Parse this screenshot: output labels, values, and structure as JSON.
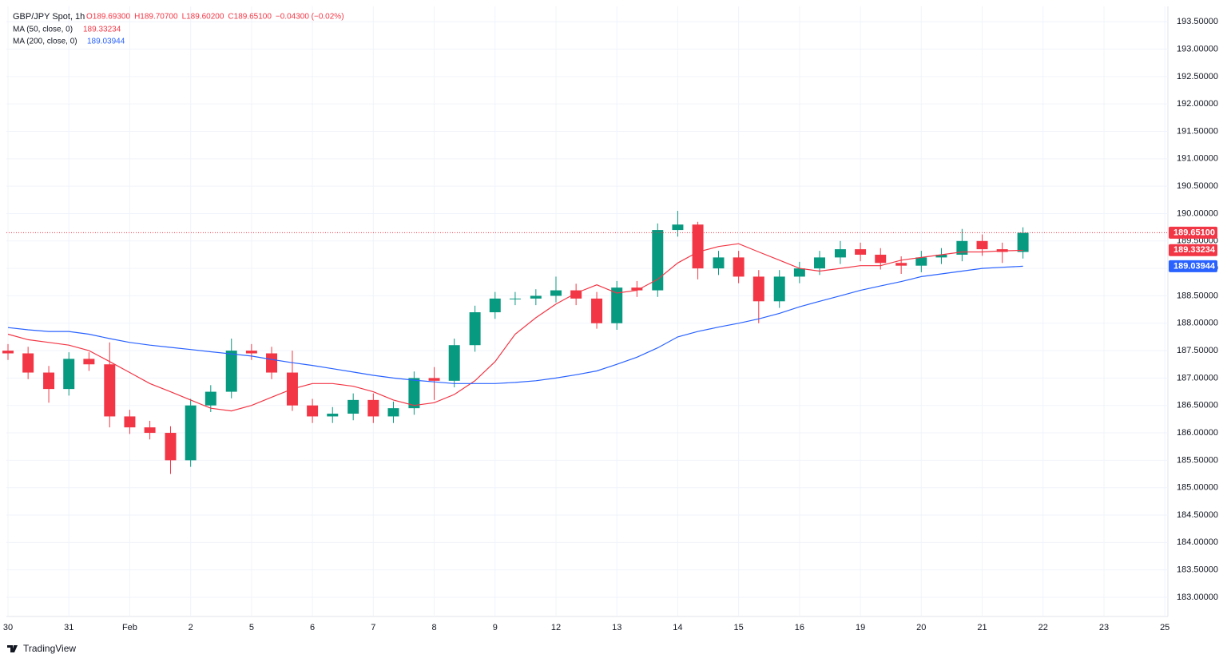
{
  "chart_data": {
    "type": "candlestick",
    "title": "GBP/JPY Spot, 1h",
    "ohlc_labels": [
      "O189.69300",
      "H189.70700",
      "L189.60200",
      "C189.65100",
      "−0.04300 (−0.02%)"
    ],
    "up_color": "#089981",
    "down_color": "#f23645",
    "candles": {
      "x": [
        0,
        0.33,
        0.67,
        1,
        1.33,
        1.67,
        2,
        2.33,
        2.67,
        3,
        3.33,
        3.67,
        4,
        4.33,
        4.67,
        5,
        5.33,
        5.67,
        6,
        6.33,
        6.67,
        7,
        7.33,
        7.67,
        8,
        8.33,
        8.67,
        9,
        9.33,
        9.67,
        10,
        10.33,
        10.67,
        11,
        11.33,
        11.67,
        12,
        12.33,
        12.67,
        13,
        13.33,
        13.67,
        14,
        14.33,
        14.67,
        15,
        15.33,
        15.67,
        16,
        16.33,
        16.67
      ],
      "open": [
        187.5,
        187.45,
        187.1,
        186.8,
        187.35,
        187.25,
        186.3,
        186.1,
        186.0,
        185.5,
        186.5,
        186.75,
        187.5,
        187.45,
        187.1,
        186.5,
        186.3,
        186.35,
        186.6,
        186.3,
        186.45,
        187.0,
        186.95,
        187.6,
        188.2,
        188.45,
        188.45,
        188.5,
        188.6,
        188.45,
        188.0,
        188.65,
        188.6,
        189.7,
        189.8,
        189.0,
        189.2,
        188.85,
        188.4,
        188.85,
        189.0,
        189.2,
        189.35,
        189.25,
        189.1,
        189.05,
        189.2,
        189.25,
        189.5,
        189.35,
        189.3
      ],
      "high": [
        187.62,
        187.57,
        187.22,
        187.47,
        187.47,
        187.65,
        186.42,
        186.22,
        186.12,
        186.62,
        186.87,
        187.72,
        187.62,
        187.57,
        187.5,
        186.62,
        186.47,
        186.72,
        186.72,
        186.57,
        187.12,
        187.2,
        187.72,
        188.32,
        188.57,
        188.57,
        188.62,
        188.85,
        188.72,
        188.57,
        188.77,
        188.77,
        189.82,
        190.05,
        189.85,
        189.32,
        189.32,
        188.97,
        188.97,
        189.12,
        189.32,
        189.5,
        189.47,
        189.37,
        189.22,
        189.32,
        189.37,
        189.72,
        189.62,
        189.47,
        189.75
      ],
      "low": [
        187.33,
        186.98,
        186.55,
        186.68,
        187.13,
        186.1,
        185.98,
        185.88,
        185.25,
        185.38,
        186.38,
        186.63,
        187.33,
        186.98,
        186.4,
        186.18,
        186.18,
        186.23,
        186.18,
        186.18,
        186.33,
        186.6,
        186.83,
        187.48,
        188.08,
        188.33,
        188.33,
        188.38,
        188.33,
        187.9,
        187.88,
        188.48,
        188.48,
        189.58,
        188.8,
        188.88,
        188.73,
        188.0,
        188.28,
        188.73,
        188.88,
        189.08,
        189.13,
        188.98,
        188.9,
        188.93,
        189.08,
        189.13,
        189.23,
        189.1,
        189.18
      ],
      "close": [
        187.45,
        187.1,
        186.8,
        187.35,
        187.25,
        186.3,
        186.1,
        186.0,
        185.5,
        186.5,
        186.75,
        187.5,
        187.45,
        187.1,
        186.5,
        186.3,
        186.35,
        186.6,
        186.3,
        186.45,
        187.0,
        186.95,
        187.6,
        188.2,
        188.45,
        188.45,
        188.5,
        188.6,
        188.45,
        188.0,
        188.65,
        188.6,
        189.7,
        189.8,
        189.0,
        189.2,
        188.85,
        188.4,
        188.85,
        189.0,
        189.2,
        189.35,
        189.25,
        189.1,
        189.05,
        189.2,
        189.25,
        189.5,
        189.35,
        189.3,
        189.651
      ]
    },
    "series": [
      {
        "name": "MA (50, close, 0)",
        "color": "#f23645",
        "last_label": "189.33234",
        "values": [
          187.8,
          187.7,
          187.65,
          187.6,
          187.5,
          187.3,
          187.1,
          186.9,
          186.75,
          186.6,
          186.45,
          186.4,
          186.5,
          186.65,
          186.8,
          186.9,
          186.9,
          186.85,
          186.75,
          186.6,
          186.5,
          186.55,
          186.7,
          186.95,
          187.3,
          187.8,
          188.1,
          188.35,
          188.55,
          188.7,
          188.55,
          188.6,
          188.8,
          189.1,
          189.3,
          189.4,
          189.45,
          189.3,
          189.15,
          189.0,
          188.95,
          189.0,
          189.05,
          189.05,
          189.15,
          189.2,
          189.25,
          189.3,
          189.3,
          189.32,
          189.33
        ]
      },
      {
        "name": "MA (200, close, 0)",
        "color": "#2962ff",
        "last_label": "189.03944",
        "values": [
          187.92,
          187.88,
          187.85,
          187.85,
          187.8,
          187.72,
          187.65,
          187.6,
          187.56,
          187.52,
          187.48,
          187.44,
          187.4,
          187.34,
          187.28,
          187.23,
          187.17,
          187.11,
          187.05,
          187.0,
          186.96,
          186.93,
          186.9,
          186.9,
          186.9,
          186.92,
          186.95,
          187.0,
          187.06,
          187.13,
          187.25,
          187.38,
          187.55,
          187.75,
          187.85,
          187.93,
          188.0,
          188.08,
          188.18,
          188.3,
          188.4,
          188.5,
          188.6,
          188.68,
          188.76,
          188.85,
          188.9,
          188.95,
          189.0,
          189.02,
          189.04
        ]
      }
    ],
    "price_badges": [
      {
        "value": 189.651,
        "label": "189.65100",
        "color": "#f23645"
      },
      {
        "value": 189.33234,
        "label": "189.33234",
        "color": "#f23645"
      },
      {
        "value": 189.03944,
        "label": "189.03944",
        "color": "#2962ff"
      }
    ],
    "xlim": [
      0,
      19.05
    ],
    "xticks": [
      {
        "value": 0,
        "label": "30"
      },
      {
        "value": 1,
        "label": "31"
      },
      {
        "value": 2,
        "label": "Feb"
      },
      {
        "value": 3,
        "label": "2"
      },
      {
        "value": 4,
        "label": "5"
      },
      {
        "value": 5,
        "label": "6"
      },
      {
        "value": 6,
        "label": "7"
      },
      {
        "value": 7,
        "label": "8"
      },
      {
        "value": 8,
        "label": "9"
      },
      {
        "value": 9,
        "label": "12"
      },
      {
        "value": 10,
        "label": "13"
      },
      {
        "value": 11,
        "label": "14"
      },
      {
        "value": 12,
        "label": "15"
      },
      {
        "value": 13,
        "label": "16"
      },
      {
        "value": 14,
        "label": "19"
      },
      {
        "value": 15,
        "label": "20"
      },
      {
        "value": 16,
        "label": "21"
      },
      {
        "value": 17,
        "label": "22"
      },
      {
        "value": 18,
        "label": "23"
      },
      {
        "value": 19,
        "label": "25"
      }
    ],
    "ylim": [
      182.65,
      193.78
    ],
    "yticks": [
      {
        "value": 183,
        "label": "183.00000"
      },
      {
        "value": 183.5,
        "label": "183.50000"
      },
      {
        "value": 184,
        "label": "184.00000"
      },
      {
        "value": 184.5,
        "label": "184.50000"
      },
      {
        "value": 185,
        "label": "185.00000"
      },
      {
        "value": 185.5,
        "label": "185.50000"
      },
      {
        "value": 186,
        "label": "186.00000"
      },
      {
        "value": 186.5,
        "label": "186.50000"
      },
      {
        "value": 187,
        "label": "187.00000"
      },
      {
        "value": 187.5,
        "label": "187.50000"
      },
      {
        "value": 188,
        "label": "188.00000"
      },
      {
        "value": 188.5,
        "label": "188.50000"
      },
      {
        "value": 189,
        "label": "189.00000"
      },
      {
        "value": 189.5,
        "label": "189.50000"
      },
      {
        "value": 190,
        "label": "190.00000"
      },
      {
        "value": 190.5,
        "label": "190.50000"
      },
      {
        "value": 191,
        "label": "191.00000"
      },
      {
        "value": 191.5,
        "label": "191.50000"
      },
      {
        "value": 192,
        "label": "192.00000"
      },
      {
        "value": 192.5,
        "label": "192.50000"
      },
      {
        "value": 193,
        "label": "193.00000"
      },
      {
        "value": 193.5,
        "label": "193.50000"
      }
    ],
    "grid": true,
    "branding": "TradingView"
  }
}
